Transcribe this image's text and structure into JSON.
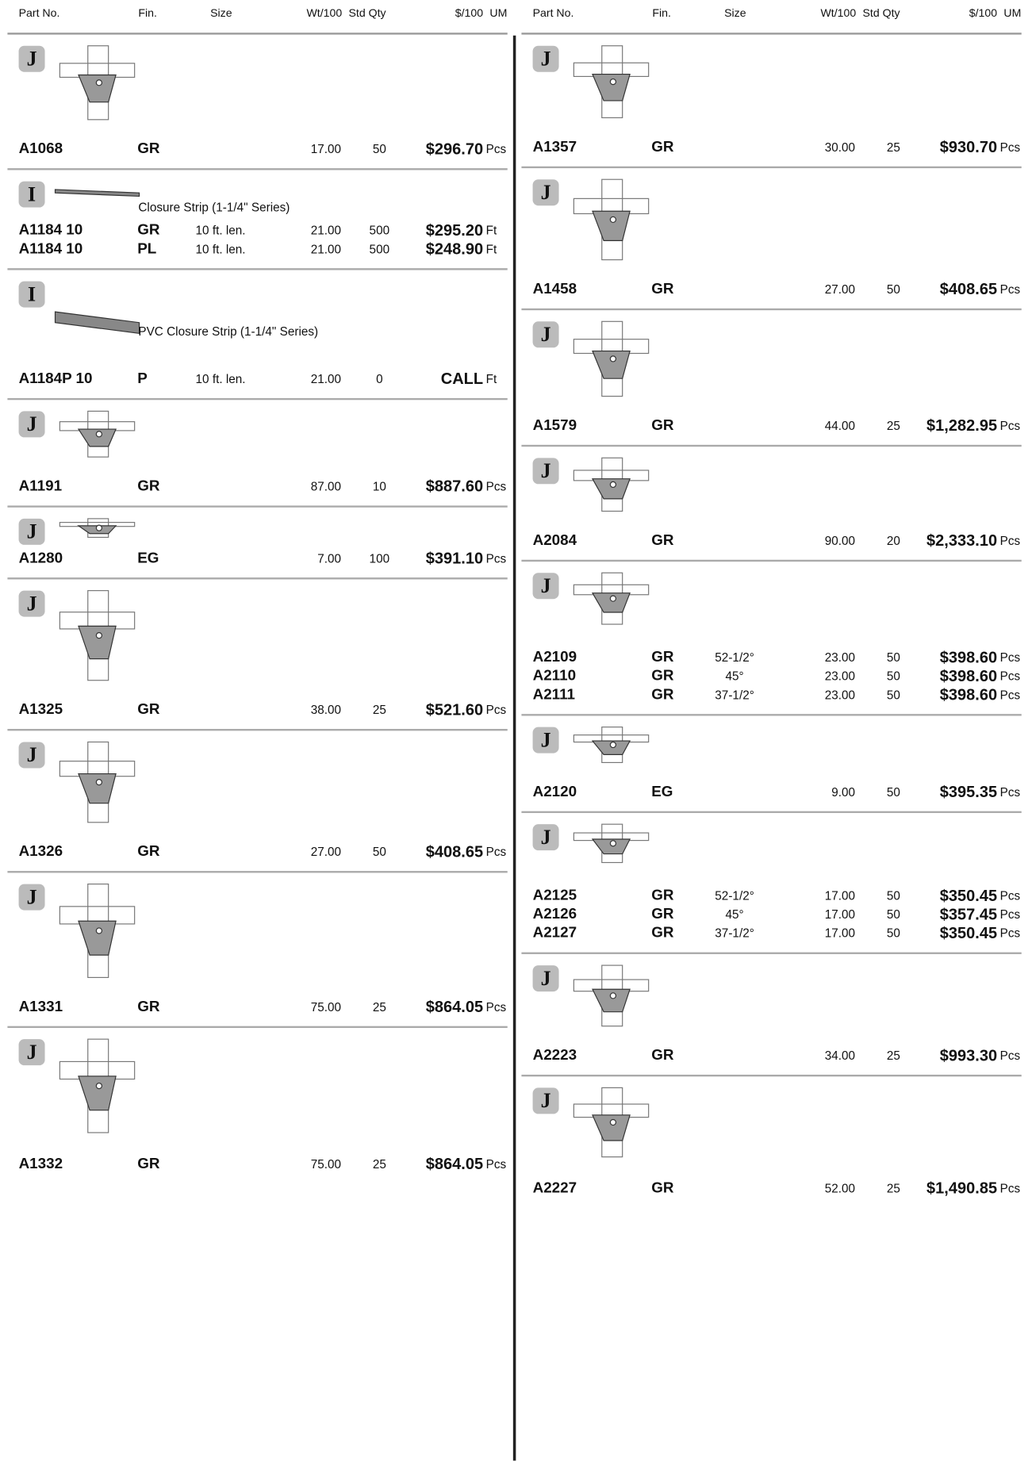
{
  "header": {
    "part_no": "Part No.",
    "fin": "Fin.",
    "size": "Size",
    "wt": "Wt/100",
    "qty": "Std Qty",
    "price": "$/100",
    "um": "UM"
  },
  "columns": [
    {
      "items": [
        {
          "badge": "J",
          "rows": [
            {
              "part": "A1068",
              "fin": "GR",
              "wt": "17.00",
              "qty": "50",
              "price": "$296.70",
              "um": "Pcs"
            }
          ]
        },
        {
          "badge": "I",
          "description": "Closure Strip (1-1/4\" Series)",
          "rows": [
            {
              "part": "A1184 10",
              "fin": "GR",
              "size": "10 ft. len.",
              "wt": "21.00",
              "qty": "500",
              "price": "$295.20",
              "um": "Ft"
            },
            {
              "part": "A1184 10",
              "fin": "PL",
              "size": "10 ft. len.",
              "wt": "21.00",
              "qty": "500",
              "price": "$248.90",
              "um": "Ft"
            }
          ]
        },
        {
          "badge": "I",
          "description": "PVC Closure Strip (1-1/4\" Series)",
          "rows": [
            {
              "part": "A1184P 10",
              "fin": "P",
              "size": "10 ft. len.",
              "wt": "21.00",
              "qty": "0",
              "price": "CALL",
              "um": "Ft"
            }
          ]
        },
        {
          "badge": "J",
          "rows": [
            {
              "part": "A1191",
              "fin": "GR",
              "wt": "87.00",
              "qty": "10",
              "price": "$887.60",
              "um": "Pcs"
            }
          ]
        },
        {
          "badge": "J",
          "rows": [
            {
              "part": "A1280",
              "fin": "EG",
              "wt": "7.00",
              "qty": "100",
              "price": "$391.10",
              "um": "Pcs"
            }
          ]
        },
        {
          "badge": "J",
          "rows": [
            {
              "part": "A1325",
              "fin": "GR",
              "wt": "38.00",
              "qty": "25",
              "price": "$521.60",
              "um": "Pcs"
            }
          ]
        },
        {
          "badge": "J",
          "rows": [
            {
              "part": "A1326",
              "fin": "GR",
              "wt": "27.00",
              "qty": "50",
              "price": "$408.65",
              "um": "Pcs"
            }
          ]
        },
        {
          "badge": "J",
          "rows": [
            {
              "part": "A1331",
              "fin": "GR",
              "wt": "75.00",
              "qty": "25",
              "price": "$864.05",
              "um": "Pcs"
            }
          ]
        },
        {
          "badge": "J",
          "rows": [
            {
              "part": "A1332",
              "fin": "GR",
              "wt": "75.00",
              "qty": "25",
              "price": "$864.05",
              "um": "Pcs"
            }
          ]
        }
      ]
    },
    {
      "items": [
        {
          "badge": "J",
          "rows": [
            {
              "part": "A1357",
              "fin": "GR",
              "wt": "30.00",
              "qty": "25",
              "price": "$930.70",
              "um": "Pcs"
            }
          ]
        },
        {
          "badge": "J",
          "rows": [
            {
              "part": "A1458",
              "fin": "GR",
              "wt": "27.00",
              "qty": "50",
              "price": "$408.65",
              "um": "Pcs"
            }
          ]
        },
        {
          "badge": "J",
          "rows": [
            {
              "part": "A1579",
              "fin": "GR",
              "wt": "44.00",
              "qty": "25",
              "price": "$1,282.95",
              "um": "Pcs"
            }
          ]
        },
        {
          "badge": "J",
          "rows": [
            {
              "part": "A2084",
              "fin": "GR",
              "wt": "90.00",
              "qty": "20",
              "price": "$2,333.10",
              "um": "Pcs"
            }
          ]
        },
        {
          "badge": "J",
          "rows": [
            {
              "part": "A2109",
              "fin": "GR",
              "size": "52-1/2°",
              "wt": "23.00",
              "qty": "50",
              "price": "$398.60",
              "um": "Pcs"
            },
            {
              "part": "A2110",
              "fin": "GR",
              "size": "45°",
              "wt": "23.00",
              "qty": "50",
              "price": "$398.60",
              "um": "Pcs"
            },
            {
              "part": "A2111",
              "fin": "GR",
              "size": "37-1/2°",
              "wt": "23.00",
              "qty": "50",
              "price": "$398.60",
              "um": "Pcs"
            }
          ]
        },
        {
          "badge": "J",
          "rows": [
            {
              "part": "A2120",
              "fin": "EG",
              "wt": "9.00",
              "qty": "50",
              "price": "$395.35",
              "um": "Pcs"
            }
          ]
        },
        {
          "badge": "J",
          "rows": [
            {
              "part": "A2125",
              "fin": "GR",
              "size": "52-1/2°",
              "wt": "17.00",
              "qty": "50",
              "price": "$350.45",
              "um": "Pcs"
            },
            {
              "part": "A2126",
              "fin": "GR",
              "size": "45°",
              "wt": "17.00",
              "qty": "50",
              "price": "$357.45",
              "um": "Pcs"
            },
            {
              "part": "A2127",
              "fin": "GR",
              "size": "37-1/2°",
              "wt": "17.00",
              "qty": "50",
              "price": "$350.45",
              "um": "Pcs"
            }
          ]
        },
        {
          "badge": "J",
          "rows": [
            {
              "part": "A2223",
              "fin": "GR",
              "wt": "34.00",
              "qty": "25",
              "price": "$993.30",
              "um": "Pcs"
            }
          ]
        },
        {
          "badge": "J",
          "rows": [
            {
              "part": "A2227",
              "fin": "GR",
              "wt": "52.00",
              "qty": "25",
              "price": "$1,490.85",
              "um": "Pcs"
            }
          ]
        }
      ]
    }
  ]
}
